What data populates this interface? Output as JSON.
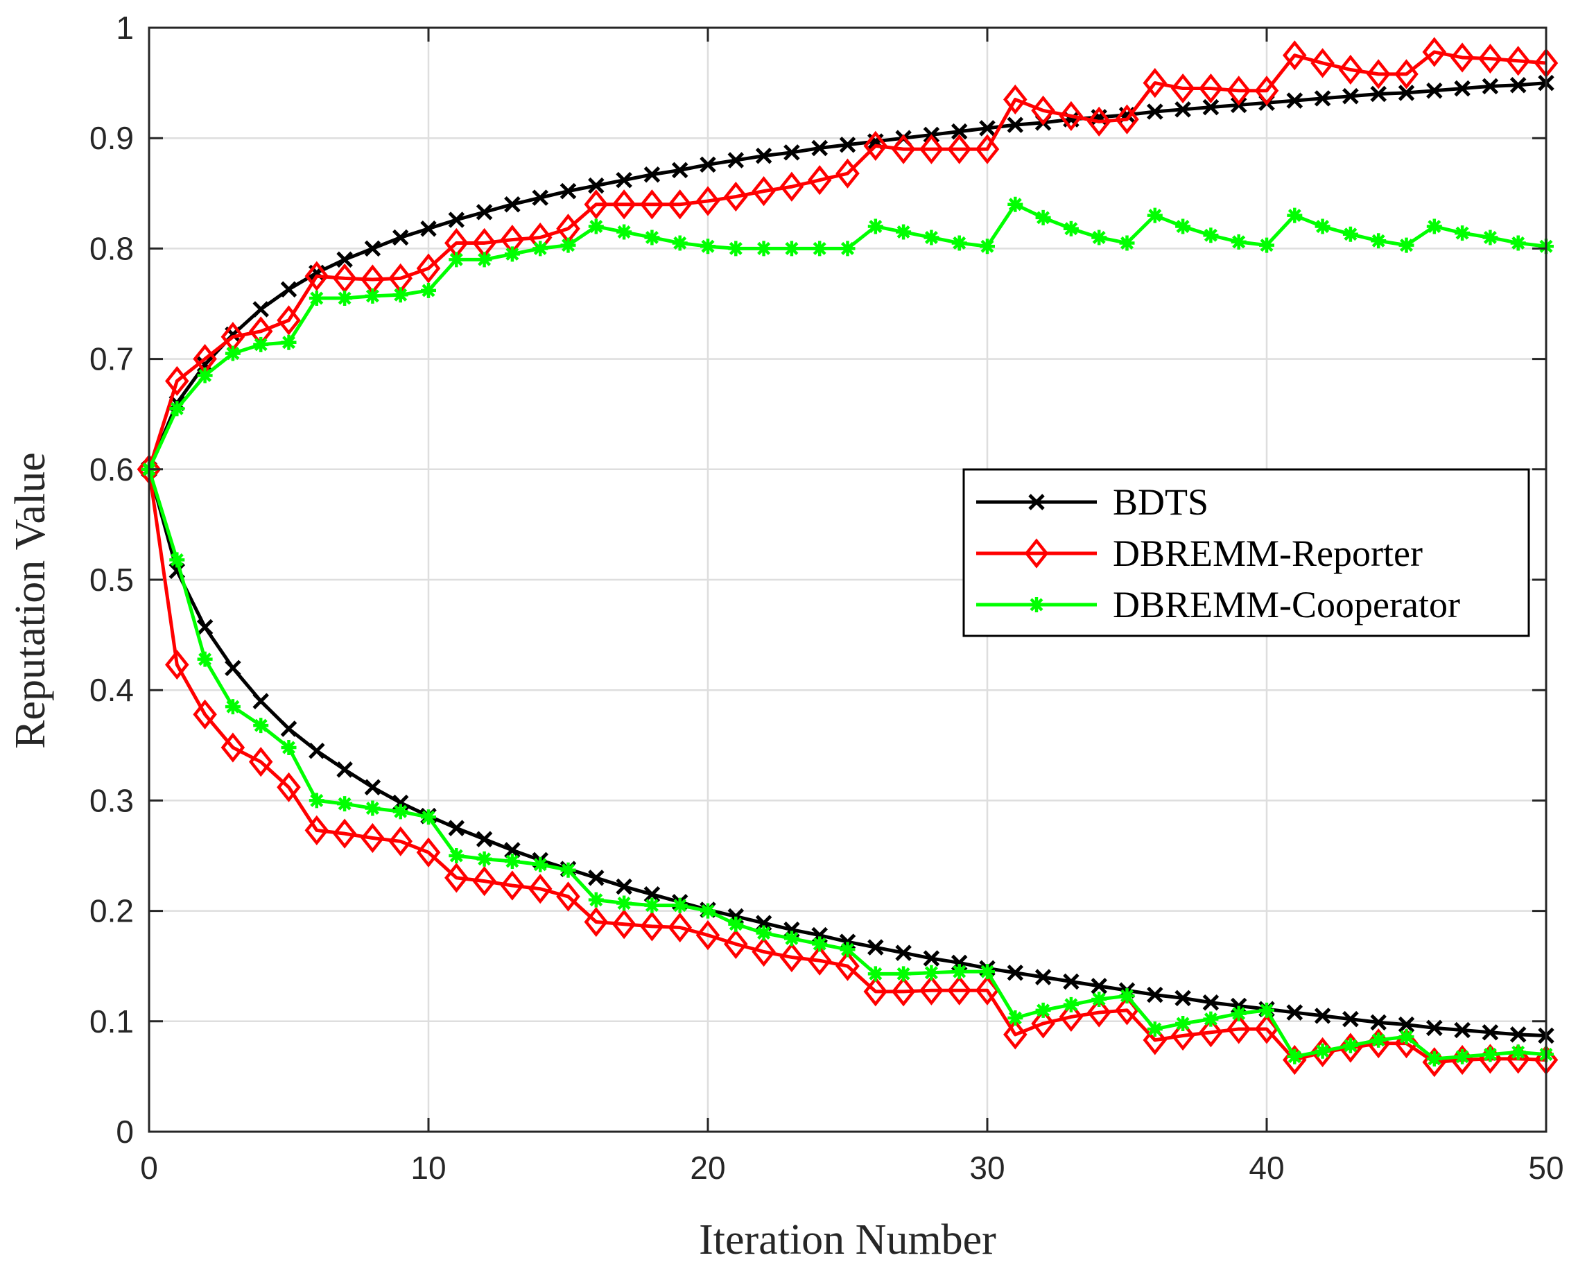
{
  "chart_data": {
    "type": "line",
    "title": "",
    "xlabel": "Iteration Number",
    "ylabel": "Reputation Value",
    "xlim": [
      0,
      50
    ],
    "ylim": [
      0,
      1
    ],
    "xticks": [
      0,
      10,
      20,
      30,
      40,
      50
    ],
    "yticks": [
      0,
      0.1,
      0.2,
      0.3,
      0.4,
      0.5,
      0.6,
      0.7,
      0.8,
      0.9,
      1
    ],
    "xtick_labels": [
      "0",
      "10",
      "20",
      "30",
      "40",
      "50"
    ],
    "ytick_labels": [
      "0",
      "0.1",
      "0.2",
      "0.3",
      "0.4",
      "0.5",
      "0.6",
      "0.7",
      "0.8",
      "0.9",
      "1"
    ],
    "grid": true,
    "legend_position": "center-right",
    "x": [
      0,
      1,
      2,
      3,
      4,
      5,
      6,
      7,
      8,
      9,
      10,
      11,
      12,
      13,
      14,
      15,
      16,
      17,
      18,
      19,
      20,
      21,
      22,
      23,
      24,
      25,
      26,
      27,
      28,
      29,
      30,
      31,
      32,
      33,
      34,
      35,
      36,
      37,
      38,
      39,
      40,
      41,
      42,
      43,
      44,
      45,
      46,
      47,
      48,
      49,
      50
    ],
    "series": [
      {
        "name": "BDTS",
        "color": "#000000",
        "marker": "x",
        "upper": [
          0.6,
          0.66,
          0.695,
          0.722,
          0.745,
          0.763,
          0.778,
          0.79,
          0.8,
          0.81,
          0.818,
          0.826,
          0.833,
          0.84,
          0.846,
          0.852,
          0.857,
          0.862,
          0.867,
          0.871,
          0.876,
          0.88,
          0.884,
          0.887,
          0.891,
          0.894,
          0.897,
          0.9,
          0.903,
          0.906,
          0.909,
          0.912,
          0.914,
          0.917,
          0.919,
          0.921,
          0.924,
          0.926,
          0.928,
          0.93,
          0.932,
          0.934,
          0.936,
          0.938,
          0.94,
          0.941,
          0.943,
          0.945,
          0.947,
          0.948,
          0.95
        ],
        "lower": [
          0.6,
          0.508,
          0.457,
          0.42,
          0.39,
          0.365,
          0.345,
          0.328,
          0.312,
          0.298,
          0.286,
          0.275,
          0.265,
          0.255,
          0.246,
          0.238,
          0.23,
          0.222,
          0.215,
          0.208,
          0.201,
          0.195,
          0.189,
          0.183,
          0.178,
          0.172,
          0.167,
          0.162,
          0.157,
          0.153,
          0.148,
          0.144,
          0.14,
          0.136,
          0.132,
          0.128,
          0.124,
          0.121,
          0.117,
          0.114,
          0.111,
          0.108,
          0.105,
          0.102,
          0.099,
          0.097,
          0.094,
          0.092,
          0.09,
          0.088,
          0.087
        ]
      },
      {
        "name": "DBREMM-Reporter",
        "color": "#ff0000",
        "marker": "diamond",
        "upper": [
          0.6,
          0.68,
          0.7,
          0.72,
          0.725,
          0.735,
          0.775,
          0.773,
          0.772,
          0.773,
          0.782,
          0.805,
          0.805,
          0.808,
          0.81,
          0.818,
          0.84,
          0.84,
          0.84,
          0.84,
          0.843,
          0.847,
          0.852,
          0.856,
          0.862,
          0.868,
          0.893,
          0.89,
          0.89,
          0.89,
          0.89,
          0.935,
          0.925,
          0.92,
          0.915,
          0.917,
          0.95,
          0.945,
          0.945,
          0.943,
          0.943,
          0.975,
          0.968,
          0.962,
          0.958,
          0.958,
          0.978,
          0.973,
          0.972,
          0.97,
          0.968
        ],
        "lower": [
          0.6,
          0.423,
          0.378,
          0.348,
          0.335,
          0.312,
          0.273,
          0.27,
          0.266,
          0.263,
          0.253,
          0.23,
          0.227,
          0.223,
          0.22,
          0.213,
          0.19,
          0.188,
          0.186,
          0.185,
          0.178,
          0.17,
          0.163,
          0.158,
          0.155,
          0.15,
          0.127,
          0.127,
          0.128,
          0.128,
          0.128,
          0.088,
          0.098,
          0.104,
          0.108,
          0.11,
          0.083,
          0.087,
          0.09,
          0.093,
          0.093,
          0.065,
          0.072,
          0.076,
          0.08,
          0.08,
          0.063,
          0.065,
          0.066,
          0.066,
          0.065
        ]
      },
      {
        "name": "DBREMM-Cooperator",
        "color": "#00ff00",
        "marker": "asterisk",
        "upper": [
          0.6,
          0.655,
          0.685,
          0.705,
          0.713,
          0.715,
          0.755,
          0.755,
          0.757,
          0.758,
          0.762,
          0.79,
          0.79,
          0.795,
          0.8,
          0.803,
          0.82,
          0.815,
          0.81,
          0.805,
          0.802,
          0.8,
          0.8,
          0.8,
          0.8,
          0.8,
          0.82,
          0.815,
          0.81,
          0.805,
          0.802,
          0.84,
          0.828,
          0.818,
          0.81,
          0.805,
          0.83,
          0.82,
          0.812,
          0.806,
          0.803,
          0.83,
          0.82,
          0.813,
          0.807,
          0.803,
          0.82,
          0.814,
          0.81,
          0.805,
          0.802
        ],
        "lower": [
          0.6,
          0.518,
          0.428,
          0.385,
          0.368,
          0.348,
          0.3,
          0.297,
          0.293,
          0.29,
          0.285,
          0.25,
          0.247,
          0.245,
          0.242,
          0.237,
          0.21,
          0.207,
          0.205,
          0.205,
          0.2,
          0.188,
          0.18,
          0.175,
          0.17,
          0.165,
          0.143,
          0.143,
          0.144,
          0.145,
          0.145,
          0.103,
          0.11,
          0.115,
          0.12,
          0.123,
          0.093,
          0.098,
          0.102,
          0.107,
          0.11,
          0.068,
          0.073,
          0.078,
          0.083,
          0.086,
          0.066,
          0.068,
          0.07,
          0.072,
          0.07
        ]
      }
    ]
  }
}
